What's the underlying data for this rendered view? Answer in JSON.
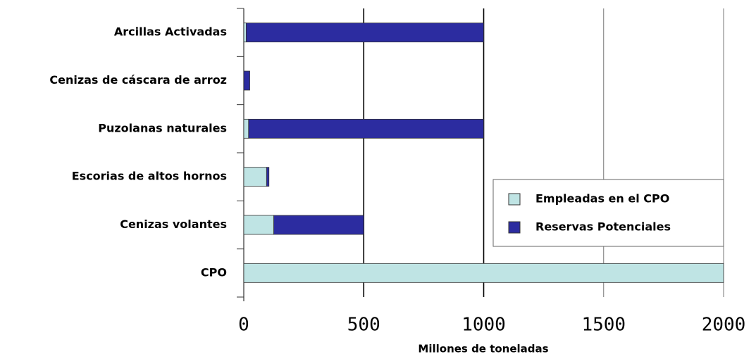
{
  "chart_data": {
    "type": "stacked-barh",
    "categories": [
      "Arcillas Activadas",
      "Cenizas de cáscara de arroz",
      "Puzolanas  naturales",
      "Escorias de altos hornos",
      "Cenizas  volantes",
      "CPO"
    ],
    "series": [
      {
        "name": "Empleadas en el CPO",
        "color": "#bfe4e4",
        "values": [
          10,
          0,
          20,
          95,
          125,
          2000
        ]
      },
      {
        "name": "Reservas Potenciales",
        "color": "#2c2ca0",
        "values": [
          990,
          25,
          980,
          10,
          375,
          0
        ]
      }
    ],
    "x_label": "Millones de toneladas",
    "xlim": [
      0,
      2000
    ],
    "xticks": [
      0,
      500,
      1000,
      1500,
      2000
    ],
    "grid": true,
    "legend": "right"
  }
}
